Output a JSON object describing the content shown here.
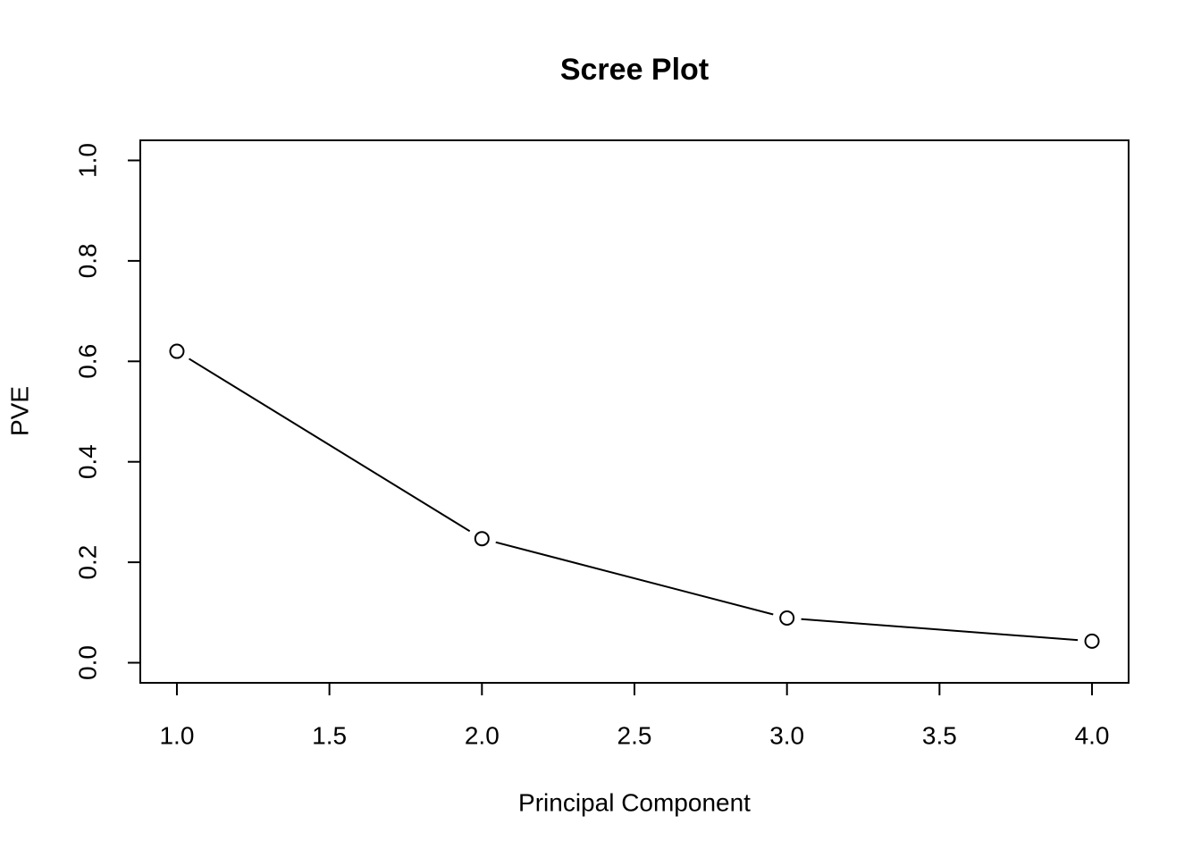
{
  "chart_data": {
    "type": "line",
    "title": "Scree Plot",
    "x_label": "Principal Component",
    "y_label": "PVE",
    "x": [
      1,
      2,
      3,
      4
    ],
    "series": [
      {
        "color": "#000000",
        "values": [
          0.62,
          0.247,
          0.089,
          0.043
        ]
      }
    ],
    "xlim": [
      0.88,
      4.12
    ],
    "ylim": [
      -0.04,
      1.04
    ],
    "xticks": [
      {
        "value": 1,
        "label": "1.0"
      },
      1.5,
      {
        "value": 2,
        "label": "2.0"
      },
      2.5,
      {
        "value": 3,
        "label": "3.0"
      },
      3.5,
      {
        "value": 4,
        "label": "4.0"
      }
    ],
    "yticks": [
      {
        "value": 0,
        "label": "0.0"
      },
      0.2,
      0.4,
      0.6,
      0.8,
      {
        "value": 1,
        "label": "1.0"
      }
    ]
  }
}
